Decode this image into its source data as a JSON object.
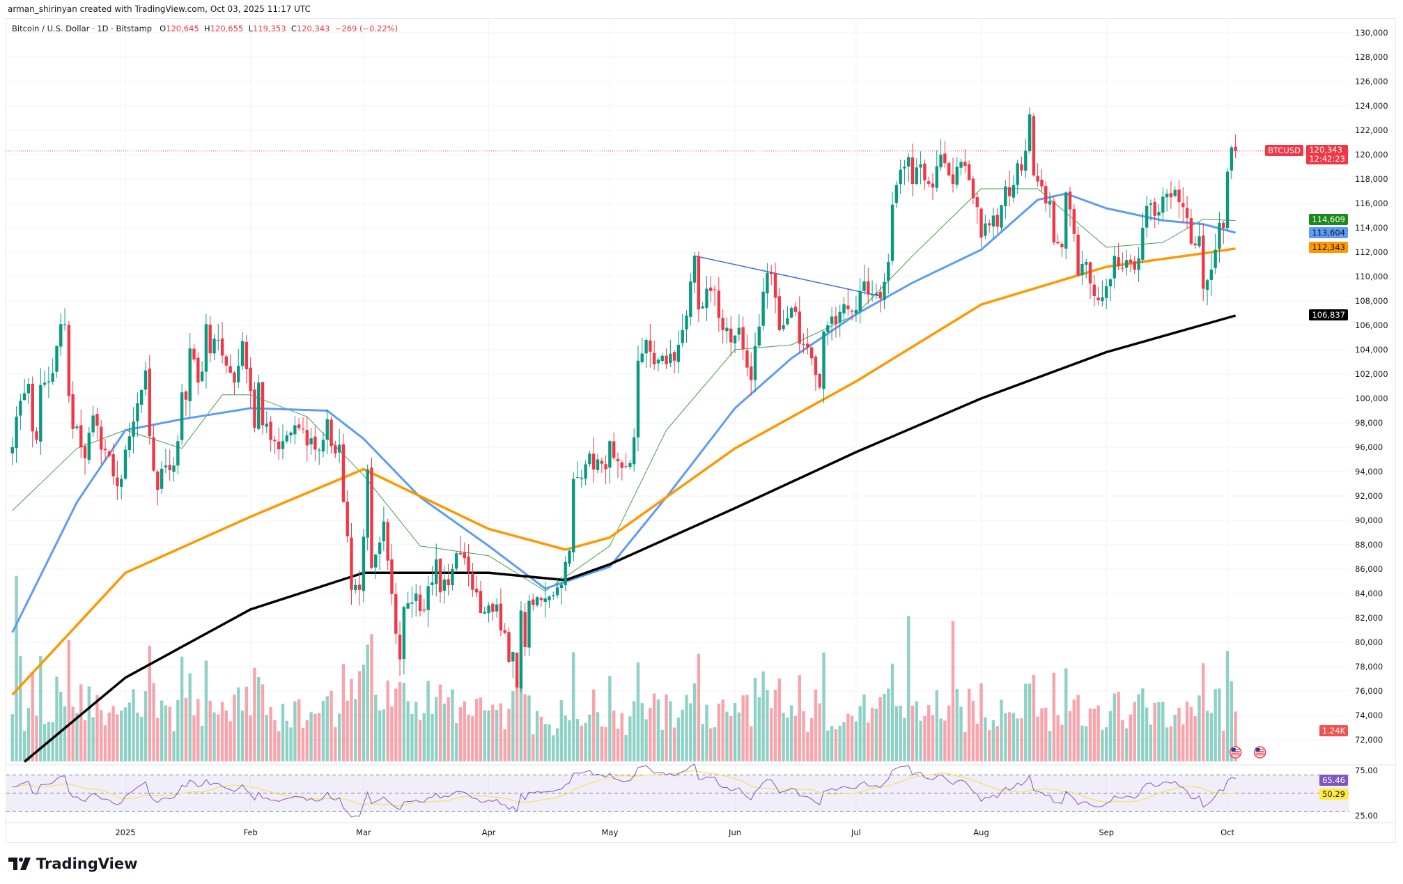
{
  "header": {
    "attribution": "arman_shirinyan created with TradingView.com, Oct 03, 2025 11:17 UTC"
  },
  "legend": {
    "title": "Bitcoin / U.S. Dollar · 1D · Bitstamp",
    "o_label": "O",
    "o_value": "120,645",
    "h_label": "H",
    "h_value": "120,655",
    "l_label": "L",
    "l_value": "119,353",
    "c_label": "C",
    "c_value": "120,343",
    "change": "−269 (−0.22%)"
  },
  "price_tags": {
    "symbol": "BTCUSD",
    "last_price": "120,343",
    "countdown": "12:42:23",
    "ma20": "114,609",
    "ma50": "113,604",
    "ma100": "112,343",
    "ma200": "106,837",
    "volume": "1.24K",
    "rsi": "65.46",
    "rsi_ma": "50.29"
  },
  "colors": {
    "up": "#089981",
    "down": "#f23645",
    "ma20": "#43a047",
    "ma50": "#5b9cf6",
    "ma100": "#ff9800",
    "ma200": "#000000",
    "trendline": "#3f6ee0",
    "rsi": "#7e57c2",
    "rsi_ma": "#f5e27a",
    "last_price": "#f23645"
  },
  "brand": {
    "logo_text": "TradingView"
  },
  "chart_data": {
    "type": "candlestick",
    "title": "Bitcoin / U.S. Dollar · 1D · Bitstamp",
    "price_unit": "thousand USD",
    "ylim": [
      71,
      131
    ],
    "price_ticks": [
      "72,000",
      "74,000",
      "76,000",
      "78,000",
      "80,000",
      "82,000",
      "84,000",
      "86,000",
      "88,000",
      "90,000",
      "92,000",
      "94,000",
      "96,000",
      "98,000",
      "100,000",
      "102,000",
      "104,000",
      "106,000",
      "108,000",
      "110,000",
      "112,000",
      "114,000",
      "116,000",
      "118,000",
      "120,000",
      "122,000",
      "124,000",
      "126,000",
      "128,000",
      "130,000"
    ],
    "time_ticks": [
      {
        "label": "2025",
        "date": "2025-01-01"
      },
      {
        "label": "Feb",
        "date": "2025-02-01"
      },
      {
        "label": "Mar",
        "date": "2025-03-01"
      },
      {
        "label": "Apr",
        "date": "2025-04-01"
      },
      {
        "label": "May",
        "date": "2025-05-01"
      },
      {
        "label": "Jun",
        "date": "2025-06-01"
      },
      {
        "label": "Jul",
        "date": "2025-07-01"
      },
      {
        "label": "Aug",
        "date": "2025-08-01"
      },
      {
        "label": "Sep",
        "date": "2025-09-01"
      },
      {
        "label": "Oct",
        "date": "2025-10-01"
      }
    ],
    "start_date": "2024-12-04",
    "end_date": "2025-10-03",
    "close_anchors": [
      [
        "2024-12-04",
        96.0
      ],
      [
        "2024-12-05",
        98.5
      ],
      [
        "2024-12-06",
        99.8
      ],
      [
        "2024-12-08",
        101.2
      ],
      [
        "2024-12-09",
        97.3
      ],
      [
        "2024-12-10",
        96.6
      ],
      [
        "2024-12-11",
        101.1
      ],
      [
        "2024-12-13",
        101.4
      ],
      [
        "2024-12-15",
        104.3
      ],
      [
        "2024-12-16",
        106.1
      ],
      [
        "2024-12-17",
        106.1
      ],
      [
        "2024-12-18",
        100.2
      ],
      [
        "2024-12-19",
        97.5
      ],
      [
        "2024-12-20",
        97.7
      ],
      [
        "2024-12-22",
        95.1
      ],
      [
        "2024-12-24",
        98.6
      ],
      [
        "2024-12-26",
        95.8
      ],
      [
        "2024-12-28",
        95.3
      ],
      [
        "2024-12-30",
        92.8
      ],
      [
        "2024-12-31",
        93.4
      ],
      [
        "2025-01-02",
        96.9
      ],
      [
        "2025-01-03",
        98.1
      ],
      [
        "2025-01-06",
        102.3
      ],
      [
        "2025-01-07",
        96.9
      ],
      [
        "2025-01-09",
        92.5
      ],
      [
        "2025-01-11",
        94.5
      ],
      [
        "2025-01-13",
        94.5
      ],
      [
        "2025-01-14",
        96.5
      ],
      [
        "2025-01-15",
        100.5
      ],
      [
        "2025-01-16",
        99.9
      ],
      [
        "2025-01-17",
        104.1
      ],
      [
        "2025-01-19",
        101.3
      ],
      [
        "2025-01-20",
        102.2
      ],
      [
        "2025-01-21",
        106.1
      ],
      [
        "2025-01-22",
        103.7
      ],
      [
        "2025-01-24",
        104.8
      ],
      [
        "2025-01-26",
        102.7
      ],
      [
        "2025-01-27",
        102.1
      ],
      [
        "2025-01-28",
        101.3
      ],
      [
        "2025-01-30",
        104.7
      ],
      [
        "2025-01-31",
        102.4
      ],
      [
        "2025-02-01",
        100.6
      ],
      [
        "2025-02-02",
        97.6
      ],
      [
        "2025-02-03",
        101.3
      ],
      [
        "2025-02-04",
        97.8
      ],
      [
        "2025-02-06",
        96.6
      ],
      [
        "2025-02-07",
        96.5
      ],
      [
        "2025-02-09",
        96.5
      ],
      [
        "2025-02-12",
        97.8
      ],
      [
        "2025-02-14",
        97.5
      ],
      [
        "2025-02-17",
        95.8
      ],
      [
        "2025-02-19",
        96.6
      ],
      [
        "2025-02-20",
        98.3
      ],
      [
        "2025-02-21",
        96.1
      ],
      [
        "2025-02-23",
        96.2
      ],
      [
        "2025-02-24",
        91.5
      ],
      [
        "2025-02-25",
        88.7
      ],
      [
        "2025-02-26",
        84.3
      ],
      [
        "2025-02-27",
        84.7
      ],
      [
        "2025-02-28",
        84.3
      ],
      [
        "2025-03-02",
        94.2
      ],
      [
        "2025-03-03",
        86.1
      ],
      [
        "2025-03-04",
        87.2
      ],
      [
        "2025-03-06",
        89.9
      ],
      [
        "2025-03-07",
        86.7
      ],
      [
        "2025-03-09",
        80.7
      ],
      [
        "2025-03-10",
        78.6
      ],
      [
        "2025-03-11",
        82.9
      ],
      [
        "2025-03-14",
        84.0
      ],
      [
        "2025-03-16",
        82.6
      ],
      [
        "2025-03-19",
        86.8
      ],
      [
        "2025-03-20",
        84.1
      ],
      [
        "2025-03-23",
        86.0
      ],
      [
        "2025-03-24",
        87.3
      ],
      [
        "2025-03-26",
        86.9
      ],
      [
        "2025-03-28",
        84.3
      ],
      [
        "2025-03-30",
        82.4
      ],
      [
        "2025-03-31",
        82.5
      ],
      [
        "2025-04-02",
        82.5
      ],
      [
        "2025-04-03",
        83.1
      ],
      [
        "2025-04-06",
        78.4
      ],
      [
        "2025-04-07",
        79.2
      ],
      [
        "2025-04-08",
        76.3
      ],
      [
        "2025-04-09",
        82.6
      ],
      [
        "2025-04-10",
        79.6
      ],
      [
        "2025-04-11",
        83.4
      ],
      [
        "2025-04-13",
        83.7
      ],
      [
        "2025-04-15",
        83.6
      ],
      [
        "2025-04-18",
        84.5
      ],
      [
        "2025-04-21",
        87.5
      ],
      [
        "2025-04-22",
        93.4
      ],
      [
        "2025-04-25",
        94.6
      ],
      [
        "2025-04-28",
        95.0
      ],
      [
        "2025-04-30",
        94.2
      ],
      [
        "2025-05-01",
        96.5
      ],
      [
        "2025-05-04",
        94.3
      ],
      [
        "2025-05-06",
        94.7
      ],
      [
        "2025-05-07",
        96.8
      ],
      [
        "2025-05-08",
        103.1
      ],
      [
        "2025-05-10",
        104.8
      ],
      [
        "2025-05-12",
        102.8
      ],
      [
        "2025-05-14",
        103.5
      ],
      [
        "2025-05-17",
        103.1
      ],
      [
        "2025-05-19",
        105.6
      ],
      [
        "2025-05-20",
        106.8
      ],
      [
        "2025-05-21",
        109.6
      ],
      [
        "2025-05-22",
        111.7
      ],
      [
        "2025-05-23",
        107.3
      ],
      [
        "2025-05-25",
        109.0
      ],
      [
        "2025-05-27",
        108.9
      ],
      [
        "2025-05-29",
        105.6
      ],
      [
        "2025-05-31",
        104.6
      ],
      [
        "2025-06-02",
        105.8
      ],
      [
        "2025-06-05",
        101.5
      ],
      [
        "2025-06-06",
        104.3
      ],
      [
        "2025-06-09",
        110.3
      ],
      [
        "2025-06-10",
        110.2
      ],
      [
        "2025-06-12",
        105.6
      ],
      [
        "2025-06-13",
        106.0
      ],
      [
        "2025-06-16",
        107.1
      ],
      [
        "2025-06-17",
        104.5
      ],
      [
        "2025-06-20",
        103.3
      ],
      [
        "2025-06-22",
        100.9
      ],
      [
        "2025-06-23",
        105.5
      ],
      [
        "2025-06-24",
        106.0
      ],
      [
        "2025-06-27",
        107.1
      ],
      [
        "2025-06-30",
        107.1
      ],
      [
        "2025-07-02",
        108.8
      ],
      [
        "2025-07-03",
        109.6
      ],
      [
        "2025-07-07",
        108.2
      ],
      [
        "2025-07-09",
        111.2
      ],
      [
        "2025-07-10",
        115.9
      ],
      [
        "2025-07-11",
        117.5
      ],
      [
        "2025-07-13",
        119.0
      ],
      [
        "2025-07-14",
        119.8
      ],
      [
        "2025-07-15",
        117.6
      ],
      [
        "2025-07-17",
        119.2
      ],
      [
        "2025-07-18",
        117.9
      ],
      [
        "2025-07-20",
        117.3
      ],
      [
        "2025-07-22",
        120.0
      ],
      [
        "2025-07-24",
        118.3
      ],
      [
        "2025-07-25",
        117.6
      ],
      [
        "2025-07-27",
        119.4
      ],
      [
        "2025-07-29",
        117.9
      ],
      [
        "2025-07-31",
        115.7
      ],
      [
        "2025-08-01",
        113.2
      ],
      [
        "2025-08-03",
        114.2
      ],
      [
        "2025-08-04",
        115.0
      ],
      [
        "2025-08-05",
        114.1
      ],
      [
        "2025-08-07",
        117.4
      ],
      [
        "2025-08-08",
        116.6
      ],
      [
        "2025-08-10",
        119.3
      ],
      [
        "2025-08-11",
        118.7
      ],
      [
        "2025-08-13",
        123.3
      ],
      [
        "2025-08-14",
        118.3
      ],
      [
        "2025-08-16",
        117.4
      ],
      [
        "2025-08-18",
        116.2
      ],
      [
        "2025-08-19",
        112.8
      ],
      [
        "2025-08-21",
        112.4
      ],
      [
        "2025-08-22",
        116.9
      ],
      [
        "2025-08-24",
        113.5
      ],
      [
        "2025-08-25",
        110.1
      ],
      [
        "2025-08-27",
        111.2
      ],
      [
        "2025-08-29",
        108.4
      ],
      [
        "2025-08-31",
        108.3
      ],
      [
        "2025-09-01",
        109.2
      ],
      [
        "2025-09-03",
        111.7
      ],
      [
        "2025-09-05",
        110.7
      ],
      [
        "2025-09-07",
        111.1
      ],
      [
        "2025-09-09",
        111.5
      ],
      [
        "2025-09-10",
        114.0
      ],
      [
        "2025-09-12",
        116.0
      ],
      [
        "2025-09-14",
        115.3
      ],
      [
        "2025-09-16",
        116.8
      ],
      [
        "2025-09-17",
        116.5
      ],
      [
        "2025-09-18",
        117.1
      ],
      [
        "2025-09-20",
        115.7
      ],
      [
        "2025-09-22",
        112.7
      ],
      [
        "2025-09-24",
        113.3
      ],
      [
        "2025-09-25",
        109.0
      ],
      [
        "2025-09-26",
        109.7
      ],
      [
        "2025-09-28",
        112.2
      ],
      [
        "2025-09-29",
        114.4
      ],
      [
        "2025-09-30",
        114.0
      ],
      [
        "2025-10-01",
        118.6
      ],
      [
        "2025-10-02",
        120.6
      ],
      [
        "2025-10-03",
        120.3
      ]
    ],
    "volume_unit": "K",
    "volume_spikes": [
      [
        "2024-12-05",
        7.4
      ],
      [
        "2024-12-06",
        4.2
      ],
      [
        "2025-07-14",
        5.8
      ],
      [
        "2025-07-25",
        5.6
      ],
      [
        "2025-02-28",
        3.6
      ],
      [
        "2025-04-07",
        2.8
      ]
    ],
    "moving_averages": [
      {
        "name": "MA 20",
        "color_key": "ma20",
        "points": [
          [
            "2024-12-04",
            90.8
          ],
          [
            "2024-12-20",
            95.9
          ],
          [
            "2025-01-01",
            97.4
          ],
          [
            "2025-01-15",
            95.9
          ],
          [
            "2025-01-25",
            100.3
          ],
          [
            "2025-02-01",
            100.3
          ],
          [
            "2025-02-15",
            98.5
          ],
          [
            "2025-03-01",
            93.7
          ],
          [
            "2025-03-15",
            87.9
          ],
          [
            "2025-04-01",
            87.1
          ],
          [
            "2025-04-15",
            84.2
          ],
          [
            "2025-05-01",
            87.9
          ],
          [
            "2025-05-15",
            97.4
          ],
          [
            "2025-06-01",
            104.0
          ],
          [
            "2025-06-15",
            104.4
          ],
          [
            "2025-07-01",
            106.9
          ],
          [
            "2025-07-15",
            111.7
          ],
          [
            "2025-08-01",
            117.2
          ],
          [
            "2025-08-15",
            117.2
          ],
          [
            "2025-09-01",
            112.4
          ],
          [
            "2025-09-15",
            112.8
          ],
          [
            "2025-09-25",
            114.7
          ],
          [
            "2025-10-03",
            114.6
          ]
        ]
      },
      {
        "name": "MA 50",
        "color_key": "ma50",
        "points": [
          [
            "2024-12-04",
            80.8
          ],
          [
            "2024-12-20",
            91.5
          ],
          [
            "2025-01-01",
            97.4
          ],
          [
            "2025-01-15",
            98.3
          ],
          [
            "2025-02-01",
            99.2
          ],
          [
            "2025-02-20",
            99.0
          ],
          [
            "2025-03-01",
            96.7
          ],
          [
            "2025-03-15",
            91.9
          ],
          [
            "2025-04-01",
            87.9
          ],
          [
            "2025-04-15",
            84.4
          ],
          [
            "2025-05-01",
            86.2
          ],
          [
            "2025-05-15",
            91.9
          ],
          [
            "2025-06-01",
            99.2
          ],
          [
            "2025-06-15",
            103.3
          ],
          [
            "2025-07-01",
            106.9
          ],
          [
            "2025-07-15",
            109.5
          ],
          [
            "2025-08-01",
            112.2
          ],
          [
            "2025-08-15",
            116.3
          ],
          [
            "2025-08-22",
            116.8
          ],
          [
            "2025-09-01",
            115.6
          ],
          [
            "2025-09-15",
            114.6
          ],
          [
            "2025-09-25",
            114.3
          ],
          [
            "2025-10-03",
            113.6
          ]
        ]
      },
      {
        "name": "MA 100",
        "color_key": "ma100",
        "points": [
          [
            "2024-12-04",
            75.7
          ],
          [
            "2025-01-01",
            85.7
          ],
          [
            "2025-02-01",
            90.3
          ],
          [
            "2025-03-01",
            94.2
          ],
          [
            "2025-04-01",
            89.3
          ],
          [
            "2025-04-20",
            87.6
          ],
          [
            "2025-05-01",
            88.6
          ],
          [
            "2025-06-01",
            95.9
          ],
          [
            "2025-07-01",
            101.4
          ],
          [
            "2025-08-01",
            107.7
          ],
          [
            "2025-09-01",
            110.8
          ],
          [
            "2025-09-25",
            111.9
          ],
          [
            "2025-10-03",
            112.3
          ]
        ]
      },
      {
        "name": "MA 200",
        "color_key": "ma200",
        "points": [
          [
            "2024-12-07",
            70.2
          ],
          [
            "2025-01-01",
            77.1
          ],
          [
            "2025-02-01",
            82.7
          ],
          [
            "2025-03-01",
            85.7
          ],
          [
            "2025-04-01",
            85.7
          ],
          [
            "2025-04-20",
            85.1
          ],
          [
            "2025-05-01",
            86.4
          ],
          [
            "2025-06-01",
            91.0
          ],
          [
            "2025-07-01",
            95.6
          ],
          [
            "2025-08-01",
            100.0
          ],
          [
            "2025-09-01",
            103.8
          ],
          [
            "2025-10-03",
            106.8
          ]
        ]
      }
    ],
    "trendline": [
      [
        "2025-05-22",
        111.7
      ],
      [
        "2025-07-07",
        108.4
      ]
    ],
    "rsi": {
      "length": 14,
      "ma_length": 14,
      "ticks": [
        "75.00",
        "25.00"
      ],
      "bands": [
        70,
        50,
        30
      ]
    },
    "events": [
      {
        "name": "us-economic-event",
        "date": "2025-10-03"
      },
      {
        "name": "us-economic-event",
        "date": "2025-10-08"
      }
    ]
  }
}
